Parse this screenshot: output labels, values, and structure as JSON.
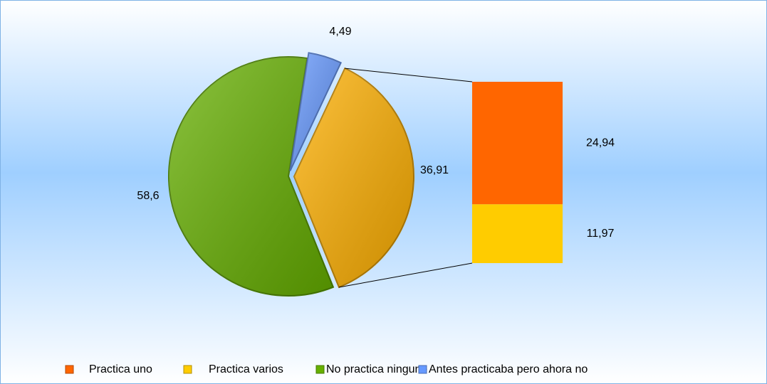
{
  "chart_data": {
    "type": "pie",
    "slices": [
      {
        "name": "No practica ninguno",
        "color": "#66b000",
        "value": 58.6,
        "value_label": "58,6"
      },
      {
        "name": "Antes practicaba pero ahora no",
        "color": "#6699ff",
        "value": 4.49,
        "value_label": "4,49"
      },
      {
        "color": "#ffb000",
        "value": 36.91,
        "value_label": "36,91"
      }
    ],
    "bar": [
      {
        "name": "Practica uno",
        "color": "#ff6600",
        "value": 24.94,
        "value_label": "24,94"
      },
      {
        "name": "Practica varios",
        "color": "#ffcc00",
        "value": 11.97,
        "value_label": "11,97"
      }
    ]
  }
}
